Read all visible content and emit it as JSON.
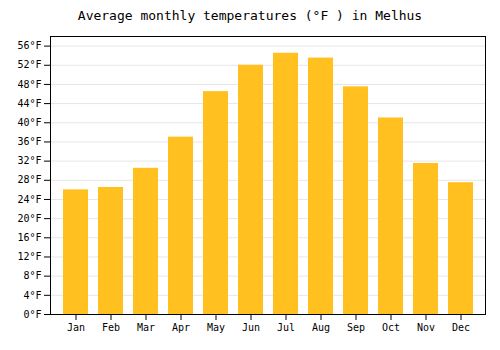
{
  "chart_data": {
    "type": "bar",
    "title": "Average monthly temperatures (°F ) in Melhus",
    "categories": [
      "Jan",
      "Feb",
      "Mar",
      "Apr",
      "May",
      "Jun",
      "Jul",
      "Aug",
      "Sep",
      "Oct",
      "Nov",
      "Dec"
    ],
    "values": [
      26,
      26.5,
      30.5,
      37,
      46.5,
      52,
      54.5,
      53.5,
      47.5,
      41,
      31.5,
      27.5
    ],
    "color": "#FFC020",
    "ylim": [
      0,
      58
    ],
    "yticks": [
      {
        "value": 0,
        "label": "0°F"
      },
      {
        "value": 4,
        "label": "4°F"
      },
      {
        "value": 8,
        "label": "8°F"
      },
      {
        "value": 12,
        "label": "12°F"
      },
      {
        "value": 16,
        "label": "16°F"
      },
      {
        "value": 20,
        "label": "20°F"
      },
      {
        "value": 24,
        "label": "24°F"
      },
      {
        "value": 28,
        "label": "28°F"
      },
      {
        "value": 32,
        "label": "32°F"
      },
      {
        "value": 36,
        "label": "36°F"
      },
      {
        "value": 40,
        "label": "40°F"
      },
      {
        "value": 44,
        "label": "44°F"
      },
      {
        "value": 48,
        "label": "48°F"
      },
      {
        "value": 52,
        "label": "52°F"
      },
      {
        "value": 56,
        "label": "56°F"
      }
    ],
    "grid": true
  }
}
